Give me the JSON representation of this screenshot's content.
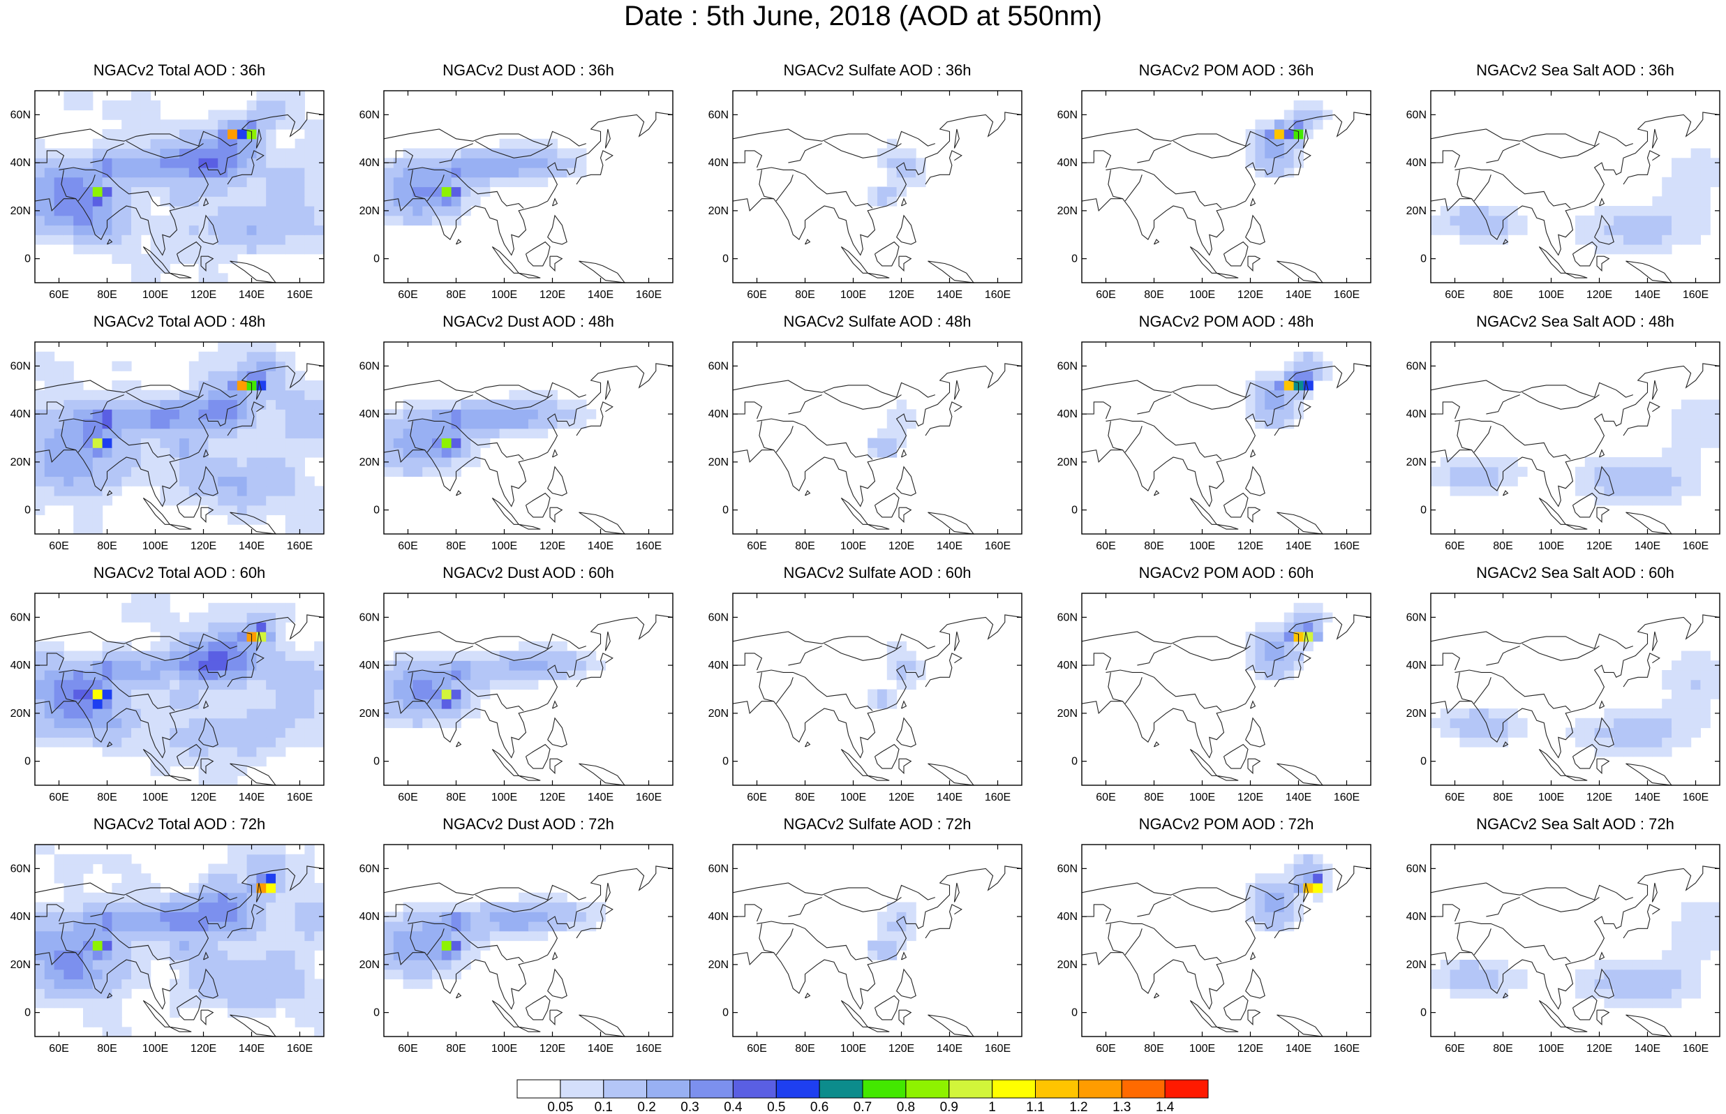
{
  "title": "Date : 5th June, 2018 (AOD at 550nm)",
  "chart_data": {
    "type": "heatmap",
    "grid": {
      "rows": [
        "36h",
        "48h",
        "60h",
        "72h"
      ],
      "columns": [
        "Total",
        "Dust",
        "Sulfate",
        "POM",
        "Sea Salt"
      ]
    },
    "map_extent": {
      "lon": [
        50,
        170
      ],
      "lat": [
        -10,
        70
      ]
    },
    "x_ticks": [
      "60E",
      "80E",
      "100E",
      "120E",
      "140E",
      "160E"
    ],
    "x_tick_values": [
      60,
      80,
      100,
      120,
      140,
      160
    ],
    "y_ticks": [
      "0",
      "20N",
      "40N",
      "60N"
    ],
    "y_tick_values": [
      0,
      20,
      40,
      60
    ],
    "panels": [
      {
        "title": "NGACv2 Total AOD : 36h",
        "species": "Total",
        "hour": 36
      },
      {
        "title": "NGACv2 Dust AOD : 36h",
        "species": "Dust",
        "hour": 36
      },
      {
        "title": "NGACv2 Sulfate AOD : 36h",
        "species": "Sulfate",
        "hour": 36
      },
      {
        "title": "NGACv2 POM AOD : 36h",
        "species": "POM",
        "hour": 36
      },
      {
        "title": "NGACv2 Sea Salt AOD : 36h",
        "species": "SeaSalt",
        "hour": 36
      },
      {
        "title": "NGACv2 Total AOD : 48h",
        "species": "Total",
        "hour": 48
      },
      {
        "title": "NGACv2 Dust AOD : 48h",
        "species": "Dust",
        "hour": 48
      },
      {
        "title": "NGACv2 Sulfate AOD : 48h",
        "species": "Sulfate",
        "hour": 48
      },
      {
        "title": "NGACv2 POM AOD : 48h",
        "species": "POM",
        "hour": 48
      },
      {
        "title": "NGACv2 Sea Salt AOD : 48h",
        "species": "SeaSalt",
        "hour": 48
      },
      {
        "title": "NGACv2 Total AOD : 60h",
        "species": "Total",
        "hour": 60
      },
      {
        "title": "NGACv2 Dust AOD : 60h",
        "species": "Dust",
        "hour": 60
      },
      {
        "title": "NGACv2 Sulfate AOD : 60h",
        "species": "Sulfate",
        "hour": 60
      },
      {
        "title": "NGACv2 POM AOD : 60h",
        "species": "POM",
        "hour": 60
      },
      {
        "title": "NGACv2 Sea Salt AOD : 60h",
        "species": "SeaSalt",
        "hour": 60
      },
      {
        "title": "NGACv2 Total AOD : 72h",
        "species": "Total",
        "hour": 72
      },
      {
        "title": "NGACv2 Dust AOD : 72h",
        "species": "Dust",
        "hour": 72
      },
      {
        "title": "NGACv2 Sulfate AOD : 72h",
        "species": "Sulfate",
        "hour": 72
      },
      {
        "title": "NGACv2 POM AOD : 72h",
        "species": "POM",
        "hour": 72
      },
      {
        "title": "NGACv2 Sea Salt  AOD : 72h",
        "species": "SeaSalt",
        "hour": 72
      }
    ],
    "colorbar": {
      "labels": [
        "0.05",
        "0.1",
        "0.2",
        "0.3",
        "0.4",
        "0.5",
        "0.6",
        "0.7",
        "0.8",
        "0.9",
        "1",
        "1.1",
        "1.2",
        "1.3",
        "1.4"
      ],
      "colors": [
        "#ffffff",
        "#d4dffb",
        "#b4c6f7",
        "#98b0f3",
        "#7c90ee",
        "#5a5fe3",
        "#1e3ff0",
        "#0c8c8c",
        "#43e800",
        "#8ef200",
        "#d2f53a",
        "#ffff00",
        "#ffc400",
        "#ff9c00",
        "#ff6a00",
        "#ff1a00"
      ]
    }
  }
}
